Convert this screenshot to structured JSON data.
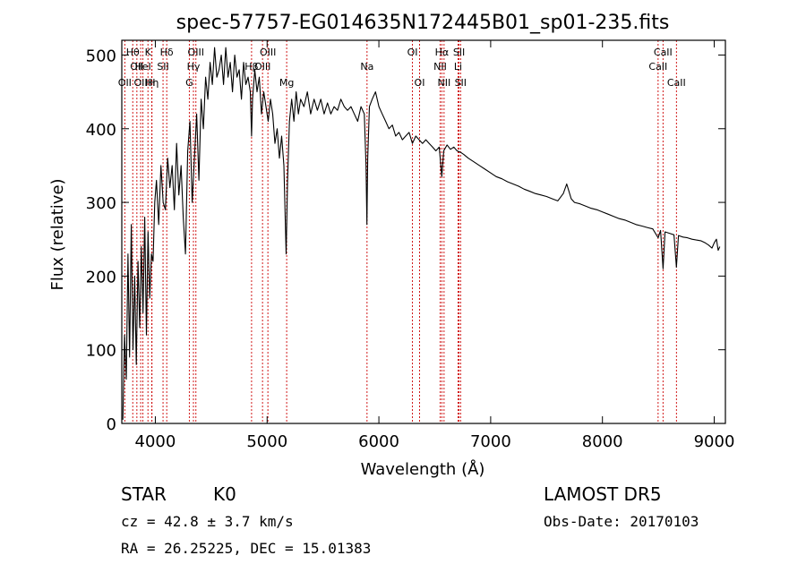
{
  "chart_data": {
    "type": "line",
    "title": "spec-57757-EG014635N172445B01_sp01-235.fits",
    "xlabel": "Wavelength (Å)",
    "ylabel": "Flux (relative)",
    "xlim": [
      3700,
      9100
    ],
    "ylim": [
      0,
      520
    ],
    "x_ticks": [
      4000,
      5000,
      6000,
      7000,
      8000,
      9000
    ],
    "y_ticks": [
      0,
      100,
      200,
      300,
      400,
      500
    ],
    "grid": false,
    "line_color": "#000000",
    "marker_color": "#cc0000",
    "spectral_lines": [
      {
        "wavelength": 3727,
        "label": "OII",
        "row": 3
      },
      {
        "wavelength": 3798,
        "label": "Hθ",
        "row": 1
      },
      {
        "wavelength": 3835,
        "label": "OII",
        "row": 2
      },
      {
        "wavelength": 3869,
        "label": "OII",
        "row": 3
      },
      {
        "wavelength": 3889,
        "label": "HeI",
        "row": 2
      },
      {
        "wavelength": 3934,
        "label": "K",
        "row": 1
      },
      {
        "wavelength": 3970,
        "label": "Hη",
        "row": 3
      },
      {
        "wavelength": 3968,
        "label": "H",
        "row": 3
      },
      {
        "wavelength": 4069,
        "label": "SII",
        "row": 2
      },
      {
        "wavelength": 4102,
        "label": "Hδ",
        "row": 1
      },
      {
        "wavelength": 4304,
        "label": "G",
        "row": 3
      },
      {
        "wavelength": 4341,
        "label": "Hγ",
        "row": 2
      },
      {
        "wavelength": 4363,
        "label": "OIII",
        "row": 1
      },
      {
        "wavelength": 4861,
        "label": "Hβ",
        "row": 2
      },
      {
        "wavelength": 4959,
        "label": "OIII",
        "row": 2
      },
      {
        "wavelength": 5007,
        "label": "OIII",
        "row": 1
      },
      {
        "wavelength": 5175,
        "label": "Mg",
        "row": 3
      },
      {
        "wavelength": 5894,
        "label": "Na",
        "row": 2
      },
      {
        "wavelength": 6300,
        "label": "OI",
        "row": 1
      },
      {
        "wavelength": 6364,
        "label": "OI",
        "row": 3
      },
      {
        "wavelength": 6548,
        "label": "NII",
        "row": 2
      },
      {
        "wavelength": 6563,
        "label": "Hα",
        "row": 1
      },
      {
        "wavelength": 6583,
        "label": "NII",
        "row": 3
      },
      {
        "wavelength": 6708,
        "label": "Li",
        "row": 2
      },
      {
        "wavelength": 6717,
        "label": "SII",
        "row": 1
      },
      {
        "wavelength": 6731,
        "label": "SII",
        "row": 3
      },
      {
        "wavelength": 8498,
        "label": "CaII",
        "row": 2
      },
      {
        "wavelength": 8542,
        "label": "CaII",
        "row": 1
      },
      {
        "wavelength": 8662,
        "label": "CaII",
        "row": 3
      }
    ],
    "series": [
      {
        "x": [
          3710,
          3725,
          3740,
          3755,
          3770,
          3785,
          3800,
          3815,
          3830,
          3845,
          3860,
          3875,
          3890,
          3905,
          3920,
          3935,
          3950,
          3965,
          3980,
          3995,
          4010,
          4030,
          4050,
          4070,
          4090,
          4110,
          4130,
          4150,
          4170,
          4190,
          4210,
          4230,
          4250,
          4270,
          4290,
          4310,
          4330,
          4350,
          4370,
          4390,
          4410,
          4430,
          4450,
          4470,
          4490,
          4510,
          4530,
          4550,
          4570,
          4590,
          4610,
          4630,
          4650,
          4670,
          4690,
          4710,
          4730,
          4750,
          4770,
          4790,
          4810,
          4830,
          4850,
          4861,
          4870,
          4890,
          4910,
          4930,
          4950,
          4970,
          4990,
          5010,
          5030,
          5050,
          5070,
          5090,
          5110,
          5130,
          5150,
          5170,
          5183,
          5200,
          5220,
          5240,
          5260,
          5280,
          5300,
          5330,
          5360,
          5390,
          5420,
          5450,
          5480,
          5510,
          5540,
          5570,
          5600,
          5630,
          5660,
          5690,
          5720,
          5750,
          5780,
          5810,
          5840,
          5870,
          5885,
          5893,
          5900,
          5915,
          5940,
          5970,
          6000,
          6030,
          6060,
          6090,
          6120,
          6150,
          6180,
          6210,
          6240,
          6270,
          6300,
          6330,
          6360,
          6390,
          6420,
          6450,
          6480,
          6510,
          6540,
          6563,
          6580,
          6610,
          6640,
          6670,
          6700,
          6730,
          6760,
          6800,
          6850,
          6900,
          6950,
          7000,
          7050,
          7100,
          7150,
          7200,
          7250,
          7300,
          7350,
          7400,
          7450,
          7500,
          7550,
          7600,
          7650,
          7680,
          7700,
          7720,
          7750,
          7800,
          7850,
          7900,
          7950,
          8000,
          8050,
          8100,
          8150,
          8200,
          8250,
          8300,
          8350,
          8400,
          8450,
          8498,
          8520,
          8542,
          8560,
          8600,
          8640,
          8662,
          8680,
          8720,
          8760,
          8800,
          8840,
          8880,
          8920,
          8950,
          8980,
          9000,
          9020,
          9035,
          9050
        ],
        "y": [
          5,
          120,
          60,
          230,
          90,
          270,
          100,
          200,
          80,
          220,
          130,
          240,
          150,
          280,
          120,
          260,
          170,
          230,
          220,
          300,
          330,
          270,
          350,
          300,
          290,
          360,
          320,
          350,
          290,
          380,
          310,
          350,
          280,
          230,
          370,
          410,
          300,
          360,
          420,
          330,
          440,
          400,
          470,
          440,
          490,
          460,
          510,
          470,
          480,
          500,
          460,
          510,
          470,
          490,
          450,
          500,
          470,
          480,
          440,
          490,
          460,
          470,
          450,
          390,
          440,
          480,
          450,
          470,
          420,
          450,
          430,
          410,
          440,
          420,
          380,
          400,
          360,
          390,
          350,
          230,
          330,
          410,
          440,
          410,
          450,
          420,
          440,
          430,
          450,
          420,
          440,
          425,
          440,
          420,
          435,
          420,
          430,
          425,
          440,
          430,
          425,
          430,
          420,
          410,
          430,
          420,
          350,
          270,
          360,
          430,
          440,
          450,
          430,
          420,
          410,
          400,
          405,
          390,
          395,
          385,
          390,
          395,
          380,
          390,
          385,
          380,
          385,
          380,
          375,
          370,
          375,
          335,
          370,
          378,
          372,
          375,
          370,
          368,
          365,
          360,
          355,
          350,
          345,
          340,
          335,
          332,
          328,
          325,
          322,
          318,
          315,
          312,
          310,
          308,
          305,
          302,
          312,
          325,
          315,
          305,
          300,
          298,
          295,
          292,
          290,
          287,
          284,
          281,
          278,
          276,
          273,
          270,
          268,
          266,
          264,
          252,
          262,
          210,
          260,
          258,
          256,
          212,
          255,
          253,
          252,
          250,
          249,
          248,
          245,
          242,
          238,
          245,
          250,
          235,
          240
        ]
      }
    ]
  },
  "info": {
    "object_class": "STAR",
    "subclass": "K0",
    "survey": "LAMOST DR5",
    "redshift_text": "cz = 42.8 ± 3.7 km/s",
    "obs_date_text": "Obs-Date: 20170103",
    "coords_text": "RA =  26.25225, DEC =  15.01383"
  }
}
